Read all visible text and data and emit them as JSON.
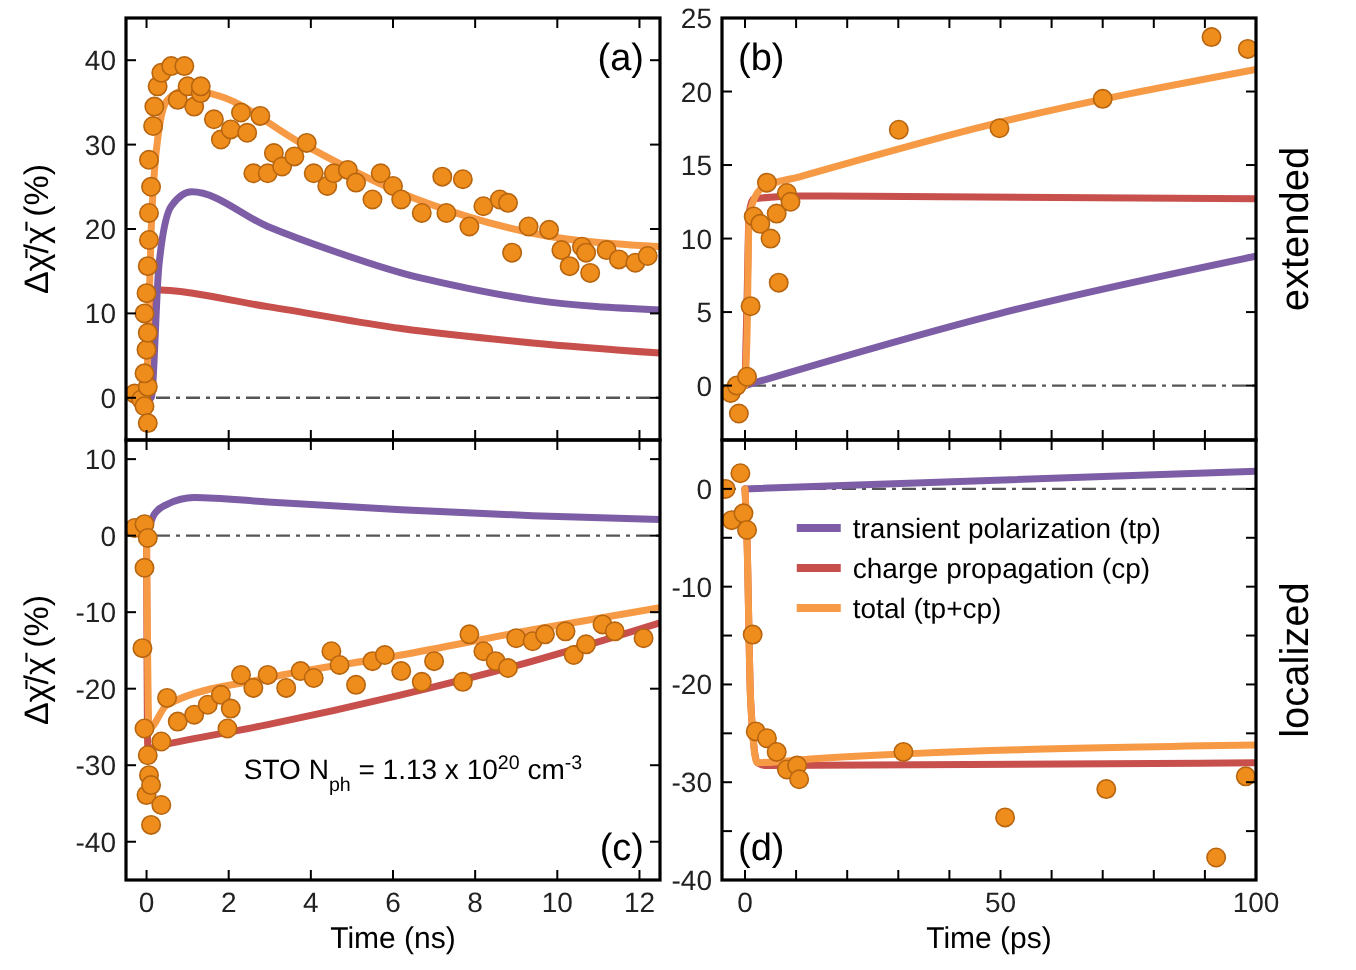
{
  "chart_data": [
    {
      "type": "line",
      "title": "(a)",
      "ylabel": "Δχ̄/χ̄   (%)",
      "xlim": [
        -0.5,
        12.5
      ],
      "ylim": [
        -5,
        45
      ],
      "xticks": [
        {
          "value": 0,
          "label": null
        },
        {
          "value": 2,
          "label": null
        },
        {
          "value": 4,
          "label": null
        },
        {
          "value": 6,
          "label": null
        },
        {
          "value": 8,
          "label": null
        },
        {
          "value": 10,
          "label": null
        },
        {
          "value": 12,
          "label": null
        }
      ],
      "yticks": [
        0,
        10,
        20,
        30,
        40
      ],
      "tick_labels": "y",
      "ref_lines": [
        {
          "axis": "y",
          "value": 0,
          "color": "#555555",
          "line_style": "dashdot"
        }
      ],
      "series": [
        {
          "type": "scatter",
          "marker": "circle",
          "color": "#ee8d1c",
          "x": [
            -0.29,
            -0.13,
            -0.05,
            0.03,
            0.03,
            -0.05,
            0,
            0.03,
            -0.05,
            0,
            0.03,
            0.06,
            0.06,
            0.11,
            0.06,
            0.16,
            0.19,
            0.27,
            0.36,
            0.6,
            0.92,
            0.76,
            1.0,
            1.16,
            1.32,
            1.32,
            1.64,
            1.81,
            2.05,
            2.3,
            2.45,
            2.77,
            2.6,
            2.95,
            3.1,
            3.3,
            3.6,
            3.9,
            4.07,
            4.4,
            4.56,
            4.9,
            5.1,
            5.5,
            5.7,
            6.0,
            6.2,
            6.7,
            7.2,
            7.3,
            7.7,
            7.86,
            8.2,
            8.6,
            8.8,
            8.9,
            9.3,
            9.8,
            10.1,
            10.3,
            10.6,
            10.7,
            10.8,
            11.2,
            11.5,
            11.9,
            12.2
          ],
          "values": [
            0.5,
            -0.2,
            -1,
            -3,
            1.3,
            2.9,
            5.7,
            7.7,
            10,
            12.4,
            15.6,
            18.7,
            21.9,
            25,
            28.2,
            32.2,
            34.5,
            36.9,
            38.5,
            39.3,
            39.3,
            35.3,
            36.9,
            34.5,
            36.1,
            36.9,
            33,
            30.6,
            31.8,
            33.8,
            31.4,
            33.4,
            26.6,
            26.6,
            29,
            27.4,
            28.6,
            30.2,
            26.6,
            25.1,
            26.6,
            27,
            25.5,
            23.5,
            26.6,
            25.1,
            23.5,
            21.9,
            26.2,
            21.9,
            25.9,
            20.3,
            22.7,
            23.5,
            23.1,
            17.2,
            20.3,
            19.9,
            17.5,
            15.6,
            17.9,
            17.2,
            14.8,
            17.5,
            16.4,
            16,
            16.8
          ]
        },
        {
          "color": "#c8504c",
          "x": [
            0,
            0.06,
            0.11,
            2.95,
            6.2,
            9.4,
            12.5
          ],
          "values": [
            0,
            0,
            12.8,
            10.8,
            8.2,
            6.5,
            5.3
          ]
        },
        {
          "color": "#7d5ea6",
          "x": [
            0,
            0.11,
            0.3,
            0.6,
            1.1,
            2.95,
            4.6,
            6.2,
            7.8,
            9.4,
            12.5
          ],
          "values": [
            0,
            0,
            15.6,
            22.7,
            24.4,
            20.3,
            17.3,
            14.8,
            13,
            11.6,
            10.4
          ]
        },
        {
          "color": "#f79a45",
          "x": [
            0,
            0.11,
            0.27,
            0.51,
            1.0,
            1.81,
            3.75,
            6.18,
            7.8,
            9.4,
            12.5
          ],
          "values": [
            0,
            19.5,
            30.6,
            35.3,
            36.5,
            35.7,
            30.2,
            24.3,
            21.5,
            19.5,
            17.9
          ]
        }
      ]
    },
    {
      "type": "line",
      "title": "(b)",
      "y2label": "extended",
      "xlim": [
        -4.5,
        100
      ],
      "ylim": [
        -3.7,
        25
      ],
      "xticks": [
        0,
        {
          "value": 10,
          "label": null
        },
        {
          "value": 20,
          "label": null
        },
        {
          "value": 30,
          "label": null
        },
        {
          "value": 40,
          "label": null
        },
        50,
        {
          "value": 60,
          "label": null
        },
        {
          "value": 70,
          "label": null
        },
        {
          "value": 80,
          "label": null
        },
        {
          "value": 90,
          "label": null
        },
        100
      ],
      "yticks": [
        0,
        5,
        10,
        15,
        20,
        25
      ],
      "tick_labels": "y",
      "ref_lines": [
        {
          "axis": "y",
          "value": 0,
          "color": "#555555",
          "line_style": "dashdot"
        }
      ],
      "series": [
        {
          "type": "scatter",
          "marker": "circle",
          "color": "#ee8d1c",
          "x": [
            -2.8,
            -1.6,
            -1.2,
            0.4,
            1.1,
            1.7,
            3,
            4.3,
            5,
            6.6,
            6.2,
            8.2,
            8.9,
            30.1,
            49.8,
            70,
            91.3,
            98.4
          ],
          "values": [
            -0.5,
            0,
            -1.9,
            0.6,
            5.4,
            11.5,
            11,
            13.8,
            10,
            7,
            11.7,
            13.1,
            12.5,
            17.4,
            17.5,
            19.5,
            23.7,
            22.9
          ]
        },
        {
          "color": "#c8504c",
          "x": [
            0,
            0.4,
            0.8,
            1.7,
            10.7,
            100
          ],
          "values": [
            0,
            5.8,
            11.7,
            12.7,
            12.9,
            12.7
          ]
        },
        {
          "color": "#7d5ea6",
          "x": [
            0,
            49.8,
            100
          ],
          "values": [
            0,
            4.9,
            8.8
          ]
        },
        {
          "color": "#f79a45",
          "x": [
            0,
            0.4,
            0.8,
            1.7,
            3.6,
            10.7,
            49.8,
            100
          ],
          "values": [
            0,
            3.5,
            11.3,
            12.6,
            13.5,
            14.2,
            17.9,
            21.5
          ]
        }
      ]
    },
    {
      "type": "line",
      "title": "(c)",
      "ylabel": "Δχ̄/χ̄   (%)",
      "xlabel": "Time (ns)",
      "annotations": [
        "STO N$_{ph}$ = 1.13 x 10$^{20}$ cm$^{-3}$"
      ],
      "xlim": [
        -0.5,
        12.5
      ],
      "ylim": [
        -45,
        12.5
      ],
      "xticks": [
        0,
        2,
        4,
        6,
        8,
        10,
        12
      ],
      "yticks": [
        -40,
        -30,
        -20,
        -10,
        0,
        10
      ],
      "ref_lines": [
        {
          "axis": "y",
          "value": 0,
          "color": "#555555",
          "line_style": "dashdot"
        }
      ],
      "series": [
        {
          "type": "scatter",
          "marker": "circle",
          "color": "#ee8d1c",
          "x": [
            -0.29,
            -0.05,
            0.03,
            -0.05,
            -0.1,
            -0.05,
            0.03,
            0.06,
            0,
            0.11,
            0.11,
            0.36,
            0.36,
            0.5,
            0.76,
            1.16,
            1.49,
            1.81,
            2.05,
            1.97,
            2.3,
            2.6,
            2.95,
            3.4,
            3.75,
            4.07,
            4.5,
            4.7,
            5.1,
            5.5,
            5.8,
            6.2,
            6.7,
            7.0,
            7.7,
            7.86,
            8.2,
            8.5,
            8.8,
            9.0,
            9.4,
            9.7,
            10.2,
            10.4,
            10.7,
            11.1,
            11.4,
            12.1
          ],
          "values": [
            1,
            1.5,
            -0.3,
            -4.2,
            -14.7,
            -25.2,
            -28.7,
            -31.3,
            -33.9,
            -32.6,
            -37.8,
            -35.2,
            -26.9,
            -21.2,
            -24.3,
            -23.4,
            -22.1,
            -20.8,
            -22.6,
            -25.2,
            -18.2,
            -19.9,
            -18.2,
            -19.9,
            -17.7,
            -18.6,
            -15.1,
            -16.9,
            -19.5,
            -16.4,
            -15.6,
            -17.7,
            -19.1,
            -16.4,
            -19.1,
            -12.9,
            -15.1,
            -16.4,
            -17.3,
            -13.4,
            -13.8,
            -12.9,
            -12.5,
            -15.6,
            -14.2,
            -11.6,
            -12.5,
            -13.4
          ]
        },
        {
          "color": "#7d5ea6",
          "x": [
            0,
            0.19,
            0.5,
            1.16,
            2.95,
            6.2,
            9.4,
            12.5
          ],
          "values": [
            0,
            2.8,
            4.1,
            5,
            4.4,
            3.4,
            2.6,
            2.1
          ]
        },
        {
          "color": "#c8504c",
          "x": [
            0,
            0.03,
            0.36,
            2.95,
            6.2,
            9.4,
            12.5
          ],
          "values": [
            0,
            -27.8,
            -27.4,
            -24.7,
            -20.8,
            -16.4,
            -11.4
          ]
        },
        {
          "color": "#f79a45",
          "x": [
            0,
            0.06,
            0.5,
            2.95,
            6.2,
            9.4,
            12.5
          ],
          "values": [
            0,
            -25.2,
            -22.1,
            -18.6,
            -15.6,
            -12.3,
            -9.4
          ]
        }
      ]
    },
    {
      "type": "line",
      "title": "(d)",
      "y2label": "localized",
      "xlabel": "Time (ps)",
      "legend": "top",
      "xlim": [
        -4.5,
        100
      ],
      "ylim": [
        -40,
        5
      ],
      "xticks": [
        0,
        {
          "value": 10,
          "label": null
        },
        {
          "value": 20,
          "label": null
        },
        {
          "value": 30,
          "label": null
        },
        {
          "value": 40,
          "label": null
        },
        50,
        {
          "value": 60,
          "label": null
        },
        {
          "value": 70,
          "label": null
        },
        {
          "value": 80,
          "label": null
        },
        {
          "value": 90,
          "label": null
        },
        100
      ],
      "yticks": [
        -40,
        {
          "value": -35,
          "label": null
        },
        -30,
        {
          "value": -25,
          "label": null
        },
        -20,
        {
          "value": -15,
          "label": null
        },
        -10,
        {
          "value": -5,
          "label": null
        },
        0
      ],
      "ref_lines": [
        {
          "axis": "y",
          "value": 0,
          "color": "#555555",
          "line_style": "dashdot"
        }
      ],
      "series": [
        {
          "type": "scatter",
          "marker": "circle",
          "color": "#ee8d1c",
          "x": [
            -3.8,
            -2.6,
            -0.9,
            -0.3,
            0.4,
            1.5,
            2.1,
            4.3,
            6.2,
            8.2,
            10.2,
            10.6,
            31,
            50.9,
            70.7,
            92.2,
            98
          ],
          "values": [
            0,
            -3.2,
            1.6,
            -2.5,
            -4.2,
            -14.9,
            -24.8,
            -25.5,
            -26.9,
            -28.7,
            -28.3,
            -29.7,
            -26.9,
            -33.6,
            -30.7,
            -37.7,
            -29.4
          ]
        },
        {
          "name": "transient polarization (tp)",
          "color": "#7d5ea6",
          "x": [
            0,
            100
          ],
          "values": [
            0,
            1.8
          ]
        },
        {
          "name": "charge propagation (cp)",
          "color": "#c8504c",
          "x": [
            0,
            0.4,
            1.1,
            2.4,
            4.3,
            100
          ],
          "values": [
            0,
            -5.3,
            -21.6,
            -28,
            -28.3,
            -28
          ]
        },
        {
          "name": "total    (tp+cp)",
          "color": "#f79a45",
          "x": [
            0,
            0.4,
            1.1,
            2.4,
            13.5,
            100
          ],
          "values": [
            0,
            -5.3,
            -21.6,
            -28,
            -27.6,
            -26.2
          ]
        }
      ]
    }
  ]
}
